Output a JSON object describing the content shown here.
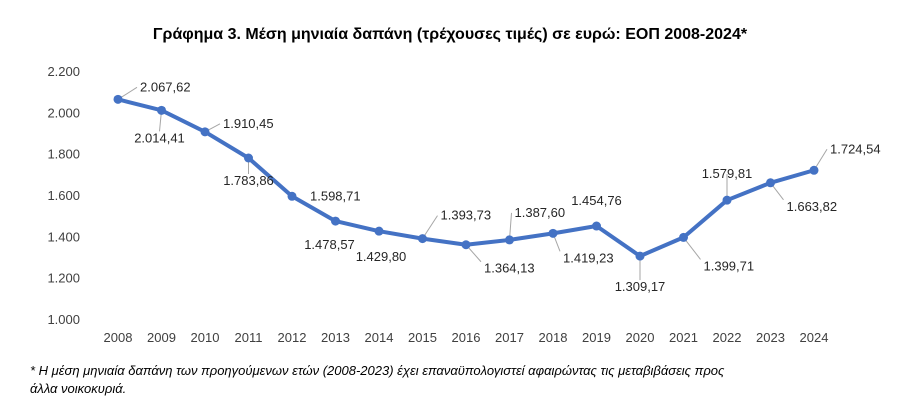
{
  "chart_data": {
    "type": "line",
    "title": "Γράφημα 3. Μέση μηνιαία δαπάνη (τρέχουσες τιμές) σε ευρώ: ΕΟΠ 2008-2024*",
    "xlabel": "",
    "ylabel": "",
    "categories": [
      "2008",
      "2009",
      "2010",
      "2011",
      "2012",
      "2013",
      "2014",
      "2015",
      "2016",
      "2017",
      "2018",
      "2019",
      "2020",
      "2021",
      "2022",
      "2023",
      "2024"
    ],
    "values": [
      2067.62,
      2014.41,
      1910.45,
      1783.86,
      1598.71,
      1478.57,
      1429.8,
      1393.73,
      1364.13,
      1387.6,
      1419.23,
      1454.76,
      1309.17,
      1399.71,
      1579.81,
      1663.82,
      1724.54
    ],
    "value_labels": [
      "2.067,62",
      "2.014,41",
      "1.910,45",
      "1.783,86",
      "1.598,71",
      "1.478,57",
      "1.429,80",
      "1.393,73",
      "1.364,13",
      "1.387,60",
      "1.419,23",
      "1.454,76",
      "1.309,17",
      "1.399,71",
      "1.579,81",
      "1.663,82",
      "1.724,54"
    ],
    "ylim": [
      1000,
      2200
    ],
    "yticks": [
      1000,
      1200,
      1400,
      1600,
      1800,
      2000,
      2200
    ],
    "ytick_labels": [
      "1.000",
      "1.200",
      "1.400",
      "1.600",
      "1.800",
      "2.000",
      "2.200"
    ],
    "grid": false,
    "legend": "none",
    "line_color": "#4472c4",
    "leader_color": "#a6a6a6"
  },
  "footnote_lines": [
    "* Η μέση μηνιαία δαπάνη των προηγούμενων ετών (2008-2023) έχει επαναϋπολογιστεί αφαιρώντας τις μεταβιβάσεις προς",
    "άλλα νοικοκυριά."
  ]
}
